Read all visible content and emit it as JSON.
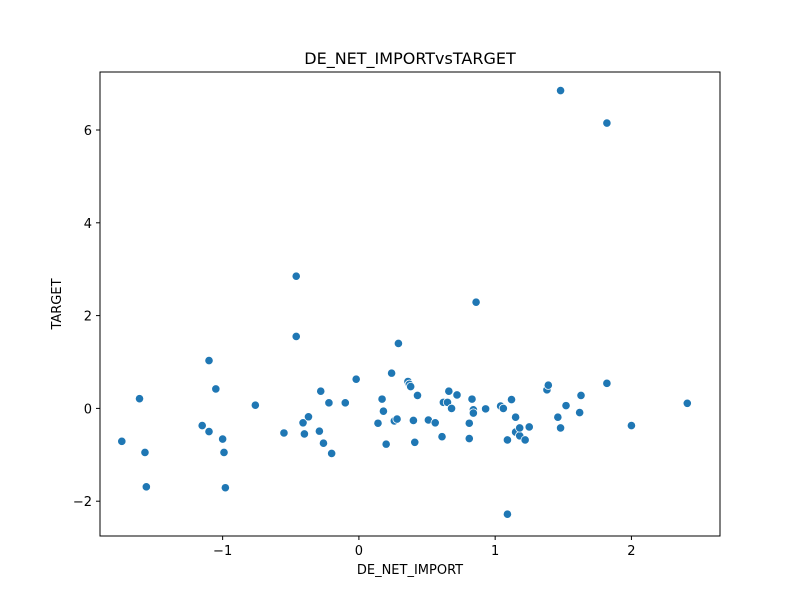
{
  "chart_data": {
    "type": "scatter",
    "title": "DE_NET_IMPORTvsTARGET",
    "xlabel": "DE_NET_IMPORT",
    "ylabel": "TARGET",
    "xlim": [
      -1.9,
      2.65
    ],
    "ylim": [
      -2.75,
      7.25
    ],
    "xticks": [
      -1,
      0,
      1,
      2
    ],
    "yticks": [
      -2,
      0,
      2,
      4,
      6
    ],
    "xtick_labels": [
      "−1",
      "0",
      "1",
      "2"
    ],
    "ytick_labels": [
      "−2",
      "0",
      "2",
      "4",
      "6"
    ],
    "grid": false,
    "marker_color": "#1f77b4",
    "series": [
      {
        "x": [
          -1.74,
          -1.61,
          -1.57,
          -1.56,
          -1.15,
          -1.1,
          -1.1,
          -1.05,
          -1.0,
          -0.99,
          -0.98,
          -0.76,
          -0.55,
          -0.46,
          -0.46,
          -0.41,
          -0.4,
          -0.37,
          -0.29,
          -0.28,
          -0.26,
          -0.22,
          -0.2,
          -0.1,
          -0.02,
          0.14,
          0.17,
          0.18,
          0.2,
          0.24,
          0.26,
          0.28,
          0.29,
          0.36,
          0.37,
          0.38,
          0.4,
          0.41,
          0.43,
          0.51,
          0.56,
          0.61,
          0.62,
          0.65,
          0.66,
          0.68,
          0.72,
          0.81,
          0.81,
          0.83,
          0.84,
          0.84,
          0.86,
          0.93,
          1.04,
          1.06,
          1.09,
          1.09,
          1.12,
          1.15,
          1.15,
          1.18,
          1.18,
          1.22,
          1.25,
          1.38,
          1.39,
          1.46,
          1.48,
          1.48,
          1.52,
          1.62,
          1.63,
          1.82,
          1.82,
          2.0,
          2.41
        ],
        "y": [
          -0.71,
          0.21,
          -0.95,
          -1.69,
          -0.37,
          1.03,
          -0.5,
          0.42,
          -0.66,
          -0.95,
          -1.71,
          0.07,
          -0.53,
          2.85,
          1.55,
          -0.31,
          -0.55,
          -0.18,
          -0.49,
          0.37,
          -0.75,
          0.12,
          -0.97,
          0.12,
          0.63,
          -0.32,
          0.2,
          -0.06,
          -0.77,
          0.76,
          -0.27,
          -0.23,
          1.4,
          0.58,
          0.52,
          0.47,
          -0.26,
          -0.73,
          0.28,
          -0.25,
          -0.31,
          -0.61,
          0.13,
          0.13,
          0.37,
          0.0,
          0.29,
          -0.65,
          -0.32,
          0.2,
          -0.03,
          -0.1,
          2.29,
          -0.01,
          0.05,
          0.0,
          -0.68,
          -2.28,
          0.19,
          -0.19,
          -0.51,
          -0.59,
          -0.42,
          -0.68,
          -0.4,
          0.4,
          0.5,
          -0.19,
          -0.42,
          6.85,
          0.06,
          -0.09,
          0.28,
          0.54,
          6.15,
          -0.37,
          0.11
        ]
      }
    ]
  }
}
